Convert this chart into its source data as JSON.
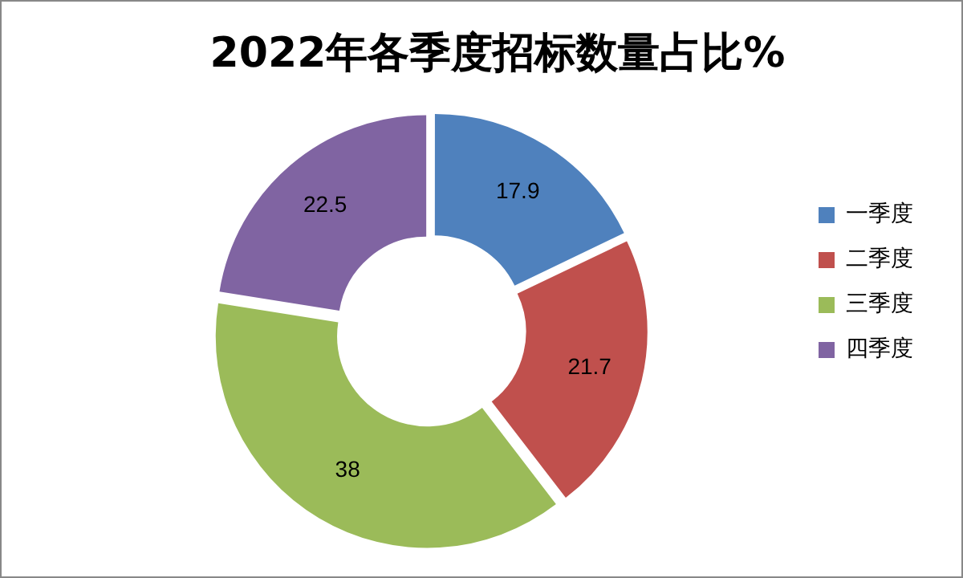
{
  "chart_data": {
    "type": "donut",
    "title": "2022年各季度招标数量占比%",
    "categories": [
      "一季度",
      "二季度",
      "三季度",
      "四季度"
    ],
    "values": [
      17.9,
      21.7,
      38,
      22.5
    ],
    "colors": [
      "#4f81bd",
      "#c0504d",
      "#9bbb59",
      "#8064a2"
    ],
    "data_labels": true,
    "legend": "right"
  }
}
